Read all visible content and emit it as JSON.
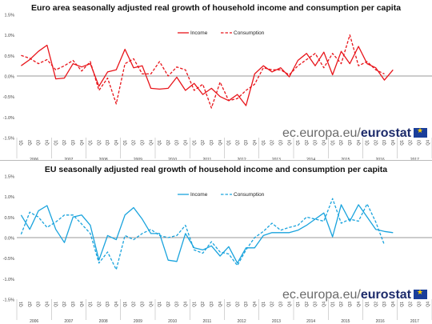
{
  "brand": {
    "prefix": "ec.europa.eu/",
    "name": "eurostat"
  },
  "chart_data": [
    {
      "type": "line",
      "title": "Euro area seasonally adjusted real growth of household income and consumption per capita",
      "color": "#e8141a",
      "ylim": [
        -1.5,
        1.5
      ],
      "yticks": [
        "1.5%",
        "1.0%",
        "0.5%",
        "0.0%",
        "-0.5%",
        "-1.0%",
        "-1.5%"
      ],
      "years": [
        "2006",
        "2007",
        "2008",
        "2009",
        "2010",
        "2011",
        "2012",
        "2013",
        "2014",
        "2015",
        "2016",
        "2017"
      ],
      "quarters": [
        "Q1",
        "Q2",
        "Q3",
        "Q4"
      ],
      "legend": {
        "placement": "top-center",
        "income": "Income",
        "consumption": "Consumption"
      },
      "series": [
        {
          "name": "Income",
          "style": "solid",
          "values": [
            0.25,
            0.4,
            0.6,
            0.75,
            -0.07,
            -0.05,
            0.3,
            0.22,
            0.3,
            -0.25,
            0.1,
            0.15,
            0.65,
            0.2,
            0.25,
            -0.3,
            -0.32,
            -0.3,
            -0.03,
            -0.35,
            -0.18,
            -0.45,
            -0.3,
            -0.5,
            -0.6,
            -0.45,
            -0.72,
            0.05,
            0.25,
            0.1,
            0.2,
            -0.02,
            0.38,
            0.55,
            0.25,
            0.58,
            0.03,
            0.6,
            0.3,
            0.72,
            0.3,
            0.2,
            -0.1,
            0.15
          ]
        },
        {
          "name": "Consumption",
          "style": "dashed",
          "values": [
            0.5,
            0.43,
            0.3,
            0.4,
            0.15,
            0.25,
            0.38,
            0.12,
            0.35,
            -0.35,
            -0.05,
            -0.68,
            0.3,
            0.42,
            0.05,
            0.05,
            0.35,
            0.0,
            0.22,
            0.15,
            -0.35,
            -0.2,
            -0.78,
            -0.15,
            -0.6,
            -0.55,
            -0.35,
            -0.2,
            0.2,
            0.15,
            0.15,
            0.03,
            0.25,
            0.4,
            0.55,
            0.2,
            0.55,
            0.3,
            1.0,
            0.25,
            0.35,
            0.15,
            0.05
          ]
        }
      ]
    },
    {
      "type": "line",
      "title": "EU seasonally adjusted real growth of household income and consumption per capita",
      "color": "#19a3dd",
      "ylim": [
        -1.5,
        1.5
      ],
      "yticks": [
        "1.5%",
        "1.0%",
        "0.5%",
        "0.0%",
        "-0.5%",
        "-1.0%",
        "-1.5%"
      ],
      "years": [
        "2006",
        "2007",
        "2008",
        "2009",
        "2010",
        "2011",
        "2012",
        "2013",
        "2014",
        "2015",
        "2016",
        "2017"
      ],
      "quarters": [
        "Q1",
        "Q2",
        "Q3",
        "Q4"
      ],
      "legend": {
        "placement": "top-center",
        "income": "Income",
        "consumption": "Consumption"
      },
      "series": [
        {
          "name": "Income",
          "style": "solid",
          "values": [
            0.55,
            0.2,
            0.65,
            0.78,
            0.2,
            -0.12,
            0.5,
            0.55,
            0.3,
            -0.55,
            0.05,
            -0.05,
            0.55,
            0.73,
            0.45,
            0.1,
            0.1,
            -0.55,
            -0.58,
            0.1,
            -0.25,
            -0.3,
            -0.2,
            -0.45,
            -0.22,
            -0.62,
            -0.25,
            -0.25,
            0.05,
            0.12,
            0.12,
            0.12,
            0.18,
            0.3,
            0.45,
            0.6,
            0.02,
            0.8,
            0.4,
            0.8,
            0.5,
            0.2,
            0.15,
            0.12
          ]
        },
        {
          "name": "Consumption",
          "style": "dashed",
          "values": [
            0.08,
            0.62,
            0.5,
            0.25,
            0.38,
            0.55,
            0.55,
            0.33,
            0.1,
            -0.62,
            -0.35,
            -0.78,
            0.05,
            -0.05,
            0.1,
            0.2,
            0.05,
            0.0,
            0.05,
            0.3,
            -0.3,
            -0.38,
            -0.1,
            -0.35,
            -0.4,
            -0.68,
            -0.3,
            0.0,
            0.15,
            0.35,
            0.18,
            0.25,
            0.3,
            0.5,
            0.45,
            0.4,
            0.95,
            0.35,
            0.45,
            0.4,
            0.82,
            0.38,
            -0.18
          ]
        }
      ]
    }
  ]
}
